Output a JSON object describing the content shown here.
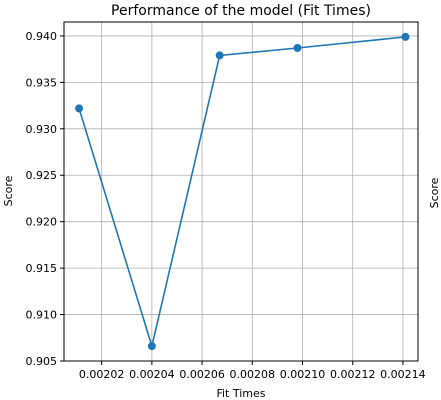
{
  "chart_data": {
    "type": "line",
    "title": "Performance of the model (Fit Times)",
    "xlabel": "Fit Times",
    "ylabel": "Score",
    "right_ylabel": "Score",
    "x_ticks": [
      "0.00202",
      "0.00204",
      "0.00206",
      "0.00208",
      "0.00210",
      "0.00212",
      "0.00214"
    ],
    "y_ticks": [
      "0.905",
      "0.910",
      "0.915",
      "0.920",
      "0.925",
      "0.930",
      "0.935",
      "0.940"
    ],
    "xlim": [
      0.002005,
      0.002146
    ],
    "ylim": [
      0.905,
      0.9415
    ],
    "grid": true,
    "series": [
      {
        "color": "#1f77b4",
        "x": [
          0.002011,
          0.00204,
          0.002067,
          0.002098,
          0.002141
        ],
        "y": [
          0.9322,
          0.9066,
          0.9379,
          0.9387,
          0.9399
        ]
      }
    ]
  }
}
